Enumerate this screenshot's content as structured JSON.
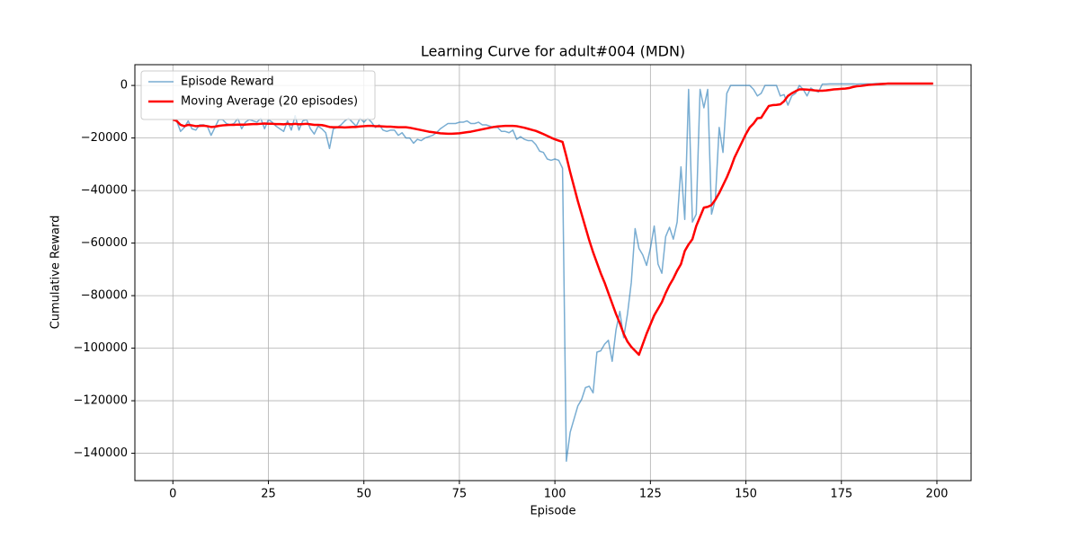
{
  "chart_data": {
    "type": "line",
    "title": "Learning Curve for adult#004 (MDN)",
    "x_label": "Episode",
    "y_label": "Cumulative Reward",
    "xlim": [
      -9.95,
      208.95
    ],
    "ylim": [
      -150400,
      7900
    ],
    "xticks": [
      0,
      25,
      50,
      75,
      100,
      125,
      150,
      175,
      200
    ],
    "yticks": [
      {
        "value": -140000,
        "label": "−140000"
      },
      {
        "value": -120000,
        "label": "−120000"
      },
      {
        "value": -100000,
        "label": "−100000"
      },
      {
        "value": -80000,
        "label": "−80000"
      },
      {
        "value": -60000,
        "label": "−60000"
      },
      {
        "value": -40000,
        "label": "−40000"
      },
      {
        "value": -20000,
        "label": "−20000"
      },
      0
    ],
    "grid": true,
    "legend": "upper left",
    "x": [
      0,
      1,
      2,
      3,
      4,
      5,
      6,
      7,
      8,
      9,
      10,
      11,
      12,
      13,
      14,
      15,
      16,
      17,
      18,
      19,
      20,
      21,
      22,
      23,
      24,
      25,
      26,
      27,
      28,
      29,
      30,
      31,
      32,
      33,
      34,
      35,
      36,
      37,
      38,
      39,
      40,
      41,
      42,
      43,
      44,
      45,
      46,
      47,
      48,
      49,
      50,
      51,
      52,
      53,
      54,
      55,
      56,
      57,
      58,
      59,
      60,
      61,
      62,
      63,
      64,
      65,
      66,
      67,
      68,
      69,
      70,
      71,
      72,
      73,
      74,
      75,
      76,
      77,
      78,
      79,
      80,
      81,
      82,
      83,
      84,
      85,
      86,
      87,
      88,
      89,
      90,
      91,
      92,
      93,
      94,
      95,
      96,
      97,
      98,
      99,
      100,
      101,
      102,
      103,
      104,
      105,
      106,
      107,
      108,
      109,
      110,
      111,
      112,
      113,
      114,
      115,
      116,
      117,
      118,
      119,
      120,
      121,
      122,
      123,
      124,
      125,
      126,
      127,
      128,
      129,
      130,
      131,
      132,
      133,
      134,
      135,
      136,
      137,
      138,
      139,
      140,
      141,
      142,
      143,
      144,
      145,
      146,
      147,
      148,
      149,
      150,
      151,
      152,
      153,
      154,
      155,
      156,
      157,
      158,
      159,
      160,
      161,
      162,
      163,
      164,
      165,
      166,
      167,
      168,
      169,
      170,
      171,
      172,
      173,
      174,
      175,
      176,
      177,
      178,
      179,
      180,
      181,
      182,
      183,
      184,
      185,
      186,
      187,
      188,
      189,
      190,
      191,
      192,
      193,
      194,
      195,
      196,
      197,
      198,
      199
    ],
    "series": [
      {
        "name": "Episode Reward",
        "color": "#1f77b4",
        "opacity": 0.6,
        "width": 1.5,
        "values": [
          -13000,
          -13500,
          -17500,
          -16000,
          -13500,
          -16500,
          -17000,
          -15000,
          -15000,
          -15500,
          -19000,
          -16000,
          -13000,
          -13000,
          -14500,
          -15000,
          -14500,
          -12500,
          -16500,
          -14000,
          -13000,
          -13500,
          -14000,
          -12500,
          -16500,
          -13000,
          -14000,
          -15500,
          -16500,
          -17500,
          -13500,
          -17000,
          -11500,
          -17000,
          -13500,
          -13000,
          -16500,
          -18500,
          -15500,
          -16500,
          -18000,
          -24000,
          -16500,
          -16000,
          -15000,
          -13500,
          -12500,
          -14000,
          -15500,
          -12500,
          -14000,
          -12500,
          -14000,
          -16000,
          -15000,
          -17000,
          -17500,
          -17000,
          -17000,
          -19000,
          -18000,
          -20000,
          -20000,
          -22000,
          -20500,
          -21000,
          -20000,
          -19500,
          -19000,
          -18000,
          -16500,
          -15500,
          -14500,
          -14500,
          -14500,
          -14000,
          -14000,
          -13500,
          -14500,
          -14500,
          -14000,
          -15000,
          -15000,
          -15500,
          -16000,
          -16000,
          -17500,
          -17500,
          -18000,
          -17000,
          -20500,
          -19500,
          -20500,
          -21000,
          -21000,
          -22500,
          -25000,
          -25500,
          -28000,
          -28500,
          -28000,
          -28500,
          -31500,
          -143000,
          -132000,
          -127000,
          -122000,
          -119500,
          -115000,
          -114500,
          -117000,
          -101500,
          -101000,
          -98500,
          -97000,
          -105000,
          -93000,
          -86000,
          -96000,
          -87000,
          -75000,
          -54500,
          -62000,
          -64500,
          -68500,
          -62000,
          -53500,
          -68000,
          -71500,
          -57500,
          -54000,
          -58500,
          -52000,
          -31000,
          -51000,
          -1500,
          -52000,
          -49000,
          -1500,
          -8500,
          -1500,
          -49000,
          -43500,
          -16000,
          -25500,
          -3000,
          0,
          0,
          0,
          0,
          0,
          0,
          -1500,
          -4000,
          -3000,
          0,
          0,
          0,
          0,
          -4000,
          -3500,
          -7500,
          -4000,
          -3000,
          0,
          -1500,
          -4000,
          -1000,
          -2000,
          -2500,
          500,
          500,
          600,
          600,
          600,
          600,
          600,
          600,
          600,
          500,
          600,
          600,
          600,
          600,
          700,
          700,
          700,
          700,
          700,
          700,
          700,
          700,
          700,
          700,
          700,
          700,
          700,
          700,
          700,
          700
        ]
      },
      {
        "name": "Moving Average (20 episodes)",
        "color": "#ff0000",
        "opacity": 1,
        "width": 2.5,
        "values": [
          -13000,
          -13500,
          -15000,
          -15500,
          -15000,
          -15200,
          -15500,
          -15400,
          -15300,
          -15500,
          -15800,
          -15700,
          -15400,
          -15200,
          -15100,
          -15000,
          -15000,
          -14900,
          -14900,
          -14900,
          -14800,
          -14700,
          -14700,
          -14600,
          -14500,
          -14600,
          -14600,
          -14700,
          -14700,
          -14800,
          -14600,
          -14800,
          -14600,
          -14800,
          -14700,
          -14600,
          -14800,
          -15000,
          -15000,
          -15100,
          -15400,
          -15800,
          -15900,
          -15900,
          -15900,
          -16000,
          -15900,
          -15800,
          -15800,
          -15600,
          -15500,
          -15400,
          -15400,
          -15500,
          -15500,
          -15600,
          -15700,
          -15700,
          -15800,
          -15900,
          -15900,
          -15900,
          -16100,
          -16400,
          -16700,
          -17000,
          -17300,
          -17600,
          -17800,
          -18000,
          -18200,
          -18300,
          -18400,
          -18400,
          -18300,
          -18200,
          -18000,
          -17800,
          -17600,
          -17300,
          -17000,
          -16700,
          -16400,
          -16100,
          -15800,
          -15600,
          -15500,
          -15400,
          -15400,
          -15400,
          -15500,
          -15800,
          -16100,
          -16500,
          -16900,
          -17300,
          -17900,
          -18500,
          -19200,
          -19900,
          -20500,
          -21000,
          -21500,
          -27000,
          -33000,
          -38500,
          -44000,
          -49000,
          -54000,
          -59000,
          -63500,
          -67500,
          -71500,
          -75000,
          -79000,
          -83000,
          -87000,
          -90500,
          -94500,
          -97500,
          -99500,
          -101000,
          -102500,
          -98500,
          -94500,
          -91000,
          -87500,
          -85000,
          -82500,
          -79000,
          -76000,
          -73500,
          -70500,
          -68000,
          -63000,
          -60500,
          -58500,
          -53500,
          -50000,
          -46500,
          -46200,
          -45500,
          -43500,
          -41000,
          -38000,
          -35000,
          -31500,
          -27500,
          -24500,
          -21500,
          -18500,
          -16000,
          -14500,
          -12500,
          -12300,
          -10000,
          -7800,
          -7500,
          -7400,
          -7200,
          -6000,
          -4000,
          -3000,
          -2200,
          -1500,
          -1500,
          -1600,
          -1700,
          -1900,
          -2000,
          -2000,
          -1900,
          -1700,
          -1500,
          -1400,
          -1300,
          -1200,
          -1000,
          -600,
          -300,
          -200,
          0,
          200,
          300,
          400,
          500,
          600,
          700,
          700,
          700,
          700,
          700,
          700,
          700,
          700,
          700,
          700,
          700,
          700,
          700
        ]
      }
    ]
  }
}
